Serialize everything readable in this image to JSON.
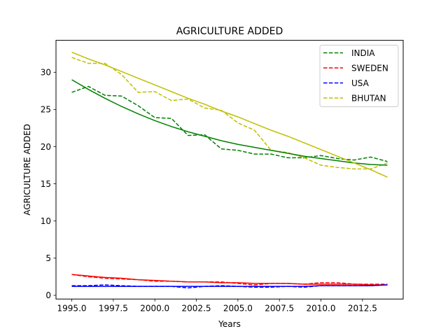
{
  "chart_data": {
    "type": "line",
    "title": "AGRICULTURE ADDED",
    "xlabel": "Years",
    "ylabel": "AGRICULTURE ADDED",
    "xlim": [
      1994.05,
      2014.95
    ],
    "ylim": [
      -0.5,
      34.3
    ],
    "xticks": [
      1995,
      1997.5,
      2000,
      2002.5,
      2005,
      2007.5,
      2010,
      2012.5
    ],
    "xtick_labels": [
      "1995.0",
      "1997.5",
      "2000.0",
      "2002.5",
      "2005.0",
      "2007.5",
      "2010.0",
      "2012.5"
    ],
    "yticks": [
      0,
      5,
      10,
      15,
      20,
      25,
      30
    ],
    "ytick_labels": [
      "0",
      "5",
      "10",
      "15",
      "20",
      "25",
      "30"
    ],
    "grid": false,
    "legend_position": "top-right",
    "x": [
      1995,
      1996,
      1997,
      1998,
      1999,
      2000,
      2001,
      2002,
      2003,
      2004,
      2005,
      2006,
      2007,
      2008,
      2009,
      2010,
      2011,
      2012,
      2013,
      2014
    ],
    "series": [
      {
        "name": "INDIA",
        "color": "#008000",
        "values": [
          27.3,
          28.1,
          26.9,
          26.8,
          25.5,
          23.9,
          23.8,
          21.5,
          21.6,
          19.7,
          19.5,
          19.0,
          19.0,
          18.5,
          18.5,
          18.8,
          18.4,
          18.2,
          18.6,
          18.0
        ],
        "trend": [
          29.0,
          27.7,
          26.5,
          25.4,
          24.4,
          23.5,
          22.7,
          22.0,
          21.4,
          20.8,
          20.3,
          19.9,
          19.5,
          19.1,
          18.7,
          18.4,
          18.1,
          17.8,
          17.6,
          17.5
        ]
      },
      {
        "name": "SWEDEN",
        "color": "#ff0000",
        "values": [
          2.8,
          2.5,
          2.3,
          2.2,
          2.1,
          1.9,
          1.9,
          1.8,
          1.8,
          1.8,
          1.6,
          1.4,
          1.6,
          1.6,
          1.5,
          1.7,
          1.7,
          1.5,
          1.5,
          1.5
        ],
        "trend": [
          2.8,
          2.6,
          2.4,
          2.3,
          2.1,
          2.0,
          1.9,
          1.8,
          1.8,
          1.7,
          1.7,
          1.6,
          1.6,
          1.6,
          1.5,
          1.5,
          1.5,
          1.5,
          1.4,
          1.4
        ]
      },
      {
        "name": "USA",
        "color": "#0000ff",
        "values": [
          1.3,
          1.3,
          1.4,
          1.3,
          1.2,
          1.2,
          1.2,
          1.0,
          1.2,
          1.3,
          1.2,
          1.1,
          1.1,
          1.2,
          1.1,
          1.3,
          1.3,
          1.3,
          1.3,
          1.4
        ],
        "trend": [
          1.2,
          1.2,
          1.2,
          1.2,
          1.2,
          1.2,
          1.2,
          1.2,
          1.2,
          1.2,
          1.2,
          1.2,
          1.2,
          1.2,
          1.2,
          1.3,
          1.3,
          1.3,
          1.3,
          1.4
        ]
      },
      {
        "name": "BHUTAN",
        "color": "#bfbf00",
        "values": [
          32.0,
          31.2,
          31.2,
          29.7,
          27.3,
          27.4,
          26.2,
          26.4,
          25.2,
          24.9,
          23.2,
          22.2,
          19.5,
          19.2,
          18.5,
          17.5,
          17.2,
          17.0,
          17.0,
          17.8
        ],
        "trend": [
          32.7,
          31.8,
          31.0,
          30.1,
          29.2,
          28.3,
          27.4,
          26.5,
          25.7,
          24.8,
          24.0,
          23.1,
          22.2,
          21.4,
          20.5,
          19.6,
          18.7,
          17.8,
          16.9,
          15.9
        ]
      }
    ]
  }
}
